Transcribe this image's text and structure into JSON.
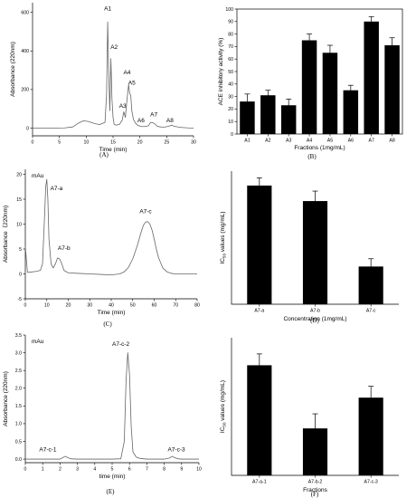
{
  "chart_data": [
    {
      "id": "A",
      "type": "line",
      "panel_label": "(A)",
      "xlabel": "Time (min)",
      "ylabel": "Absorbance (220nm)",
      "xlim": [
        0,
        30
      ],
      "ylim": [
        -40,
        650
      ],
      "xticks": [
        0,
        5,
        10,
        15,
        20,
        25,
        30
      ],
      "yticks": [
        0,
        200,
        400,
        600
      ],
      "x": [
        0,
        3,
        6,
        7.5,
        8.5,
        9.5,
        10.5,
        11.5,
        12.5,
        13.5,
        13.8,
        14.0,
        14.2,
        14.4,
        14.6,
        14.8,
        15.0,
        15.2,
        15.6,
        16.2,
        16.7,
        17.0,
        17.3,
        17.6,
        17.9,
        18.1,
        18.3,
        18.5,
        18.8,
        19.2,
        19.6,
        20.2,
        21.0,
        21.6,
        22.0,
        22.4,
        22.8,
        23.2,
        23.8,
        24.6,
        25.4,
        25.9,
        26.4,
        27.2,
        28.0,
        29.0,
        30
      ],
      "y": [
        0,
        0,
        1,
        6,
        25,
        38,
        34,
        24,
        18,
        30,
        180,
        550,
        280,
        90,
        360,
        150,
        55,
        20,
        15,
        20,
        40,
        85,
        55,
        150,
        225,
        180,
        170,
        90,
        45,
        25,
        15,
        8,
        8,
        12,
        30,
        28,
        22,
        10,
        6,
        5,
        10,
        15,
        10,
        5,
        3,
        1,
        0
      ],
      "peak_labels": [
        {
          "text": "A1",
          "x": 14.0,
          "y": 610
        },
        {
          "text": "A2",
          "x": 15.2,
          "y": 410
        },
        {
          "text": "A3",
          "x": 16.8,
          "y": 105
        },
        {
          "text": "A4",
          "x": 17.6,
          "y": 280
        },
        {
          "text": "A5",
          "x": 18.5,
          "y": 225
        },
        {
          "text": "A6",
          "x": 20.2,
          "y": 30
        },
        {
          "text": "A7",
          "x": 22.6,
          "y": 60
        },
        {
          "text": "A8",
          "x": 25.6,
          "y": 30
        }
      ]
    },
    {
      "id": "B",
      "type": "bar",
      "panel_label": "(B)",
      "xlabel": "Fractions (1mg/mL)",
      "ylabel": "ACE inhibitory activity (%)",
      "ylim": [
        0,
        100
      ],
      "yticks": [
        0,
        10,
        20,
        30,
        40,
        50,
        60,
        70,
        80,
        90,
        100
      ],
      "categories": [
        "A1",
        "A2",
        "A3",
        "A4",
        "A5",
        "A6",
        "A7",
        "A8"
      ],
      "values": [
        26,
        31,
        23,
        75,
        65,
        35,
        90,
        71
      ],
      "errors": [
        6,
        4,
        5,
        5,
        6,
        4,
        4,
        6
      ]
    },
    {
      "id": "C",
      "type": "line",
      "panel_label": "(C)",
      "xlabel": "Time (min)",
      "ylabel": "Absorbance（220nm)",
      "unit_label": "mAu",
      "xlim": [
        0,
        80
      ],
      "ylim": [
        -5,
        21
      ],
      "xticks": [
        0,
        10,
        20,
        30,
        40,
        50,
        60,
        70,
        80
      ],
      "yticks": [
        -5,
        0,
        5,
        10,
        15,
        20
      ],
      "x": [
        0,
        1,
        3,
        5,
        7,
        8,
        9,
        9.5,
        10,
        10.5,
        11,
        12,
        13,
        14,
        15,
        16,
        17,
        18,
        20,
        25,
        30,
        35,
        40,
        44,
        46,
        48,
        50,
        52,
        54,
        55,
        56,
        57,
        58,
        59,
        60,
        61,
        62,
        64,
        66,
        68,
        70,
        75,
        80
      ],
      "y": [
        5.5,
        0.3,
        0.4,
        0.5,
        0.7,
        2,
        12,
        17.5,
        19,
        15,
        7,
        2,
        1.2,
        2,
        3.2,
        3,
        2,
        0.7,
        0.2,
        0.1,
        0,
        -0.1,
        -0.2,
        0,
        0.4,
        1.3,
        3,
        5.5,
        8.5,
        9.8,
        10.4,
        10.5,
        10,
        8.8,
        7,
        5,
        3.3,
        1.2,
        0.4,
        0.1,
        0,
        0,
        0
      ],
      "peak_labels": [
        {
          "text": "A7-a",
          "x": 14.5,
          "y": 16.8
        },
        {
          "text": "A7-b",
          "x": 18,
          "y": 4.8
        },
        {
          "text": "A7-c",
          "x": 56,
          "y": 12.2
        }
      ]
    },
    {
      "id": "D",
      "type": "bar",
      "panel_label": "(D)",
      "xlabel": "Concentration (1mg/mL)",
      "ylabel": "IC50 values (mg/mL)",
      "ylim": [
        0,
        1.2
      ],
      "categories": [
        "A7-a",
        "A7-b",
        "A7-c"
      ],
      "values": [
        1.07,
        0.93,
        0.34
      ],
      "errors": [
        0.07,
        0.09,
        0.07
      ]
    },
    {
      "id": "E",
      "type": "line",
      "panel_label": "(E)",
      "xlabel": "time (min)",
      "ylabel": "Absorbance (220nm)",
      "unit_label": "mAu",
      "xlim": [
        0,
        10
      ],
      "ylim": [
        -0.1,
        3.5
      ],
      "xticks": [
        0,
        1,
        2,
        3,
        4,
        5,
        6,
        7,
        8,
        9,
        10
      ],
      "yticks": [
        0.0,
        0.5,
        1.0,
        1.5,
        2.0,
        2.5,
        3.0,
        3.5
      ],
      "x": [
        0,
        1,
        2.0,
        2.15,
        2.3,
        2.45,
        2.6,
        3,
        4,
        5,
        5.5,
        5.7,
        5.8,
        5.9,
        6.0,
        6.1,
        6.2,
        6.4,
        6.6,
        7,
        8,
        8.3,
        8.45,
        8.6,
        8.8,
        9,
        10
      ],
      "y": [
        0,
        0,
        0,
        0.04,
        0.08,
        0.04,
        0.01,
        0,
        0,
        0,
        0.01,
        0.5,
        2.2,
        3.0,
        2.4,
        0.9,
        0.2,
        0.05,
        0.02,
        0,
        0,
        0.03,
        0.08,
        0.04,
        0.01,
        0,
        0
      ],
      "peak_labels": [
        {
          "text": "A7-c-1",
          "x": 1.3,
          "y": 0.22
        },
        {
          "text": "A7-c-2",
          "x": 5.5,
          "y": 3.2
        },
        {
          "text": "A7-c-3",
          "x": 8.7,
          "y": 0.22
        }
      ]
    },
    {
      "id": "F",
      "type": "bar",
      "panel_label": "(F)",
      "xlabel": "Fractions",
      "ylabel": "IC50 values (mg/mL)",
      "ylim": [
        0,
        0.85
      ],
      "categories": [
        "A7-a-1",
        "A7-b-2",
        "A7-c-3"
      ],
      "values": [
        0.68,
        0.29,
        0.48
      ],
      "errors": [
        0.07,
        0.09,
        0.07
      ]
    }
  ]
}
